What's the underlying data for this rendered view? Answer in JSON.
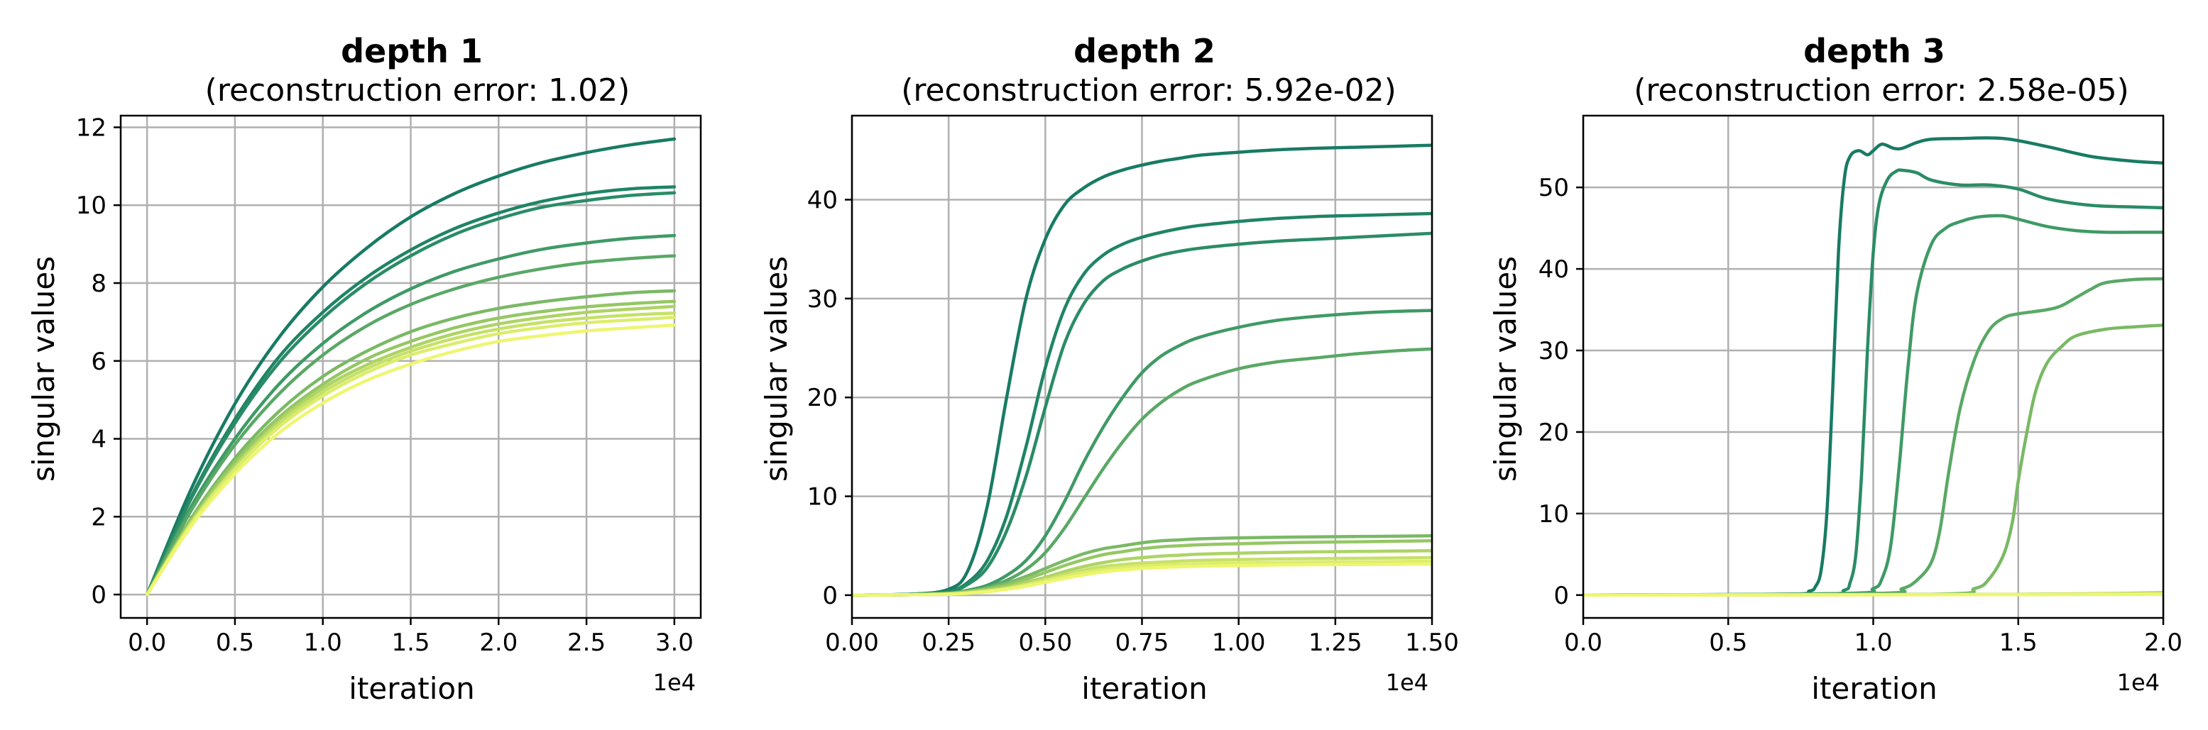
{
  "chart_data": [
    {
      "type": "line",
      "title": "depth 1",
      "subtitle": "(reconstruction error: 1.02)",
      "xlabel": "iteration",
      "ylabel": "singular values",
      "x_offset_label": "1e4",
      "x_scale": 10000,
      "xlim": [
        -0.15,
        3.15
      ],
      "ylim": [
        -0.6,
        12.3
      ],
      "xticks": [
        0.0,
        0.5,
        1.0,
        1.5,
        2.0,
        2.5,
        3.0
      ],
      "xtick_labels": [
        "0.0",
        "0.5",
        "1.0",
        "1.5",
        "2.0",
        "2.5",
        "3.0"
      ],
      "yticks": [
        0,
        2,
        4,
        6,
        8,
        10,
        12
      ],
      "ytick_labels": [
        "0",
        "2",
        "4",
        "6",
        "8",
        "10",
        "12"
      ],
      "grid": true,
      "x": [
        0.0,
        0.25,
        0.5,
        0.75,
        1.0,
        1.25,
        1.5,
        1.75,
        2.0,
        2.25,
        2.5,
        2.75,
        3.0
      ],
      "series": [
        {
          "color": "#187b63",
          "values": [
            0.0,
            2.7,
            4.9,
            6.6,
            7.9,
            8.9,
            9.7,
            10.3,
            10.75,
            11.1,
            11.35,
            11.55,
            11.7
          ]
        },
        {
          "color": "#1f8465",
          "values": [
            0.0,
            2.5,
            4.5,
            6.1,
            7.25,
            8.15,
            8.85,
            9.4,
            9.8,
            10.1,
            10.3,
            10.42,
            10.47
          ]
        },
        {
          "color": "#2a8c66",
          "values": [
            0.0,
            2.45,
            4.4,
            5.95,
            7.1,
            8.0,
            8.7,
            9.25,
            9.65,
            9.95,
            10.12,
            10.25,
            10.32
          ]
        },
        {
          "color": "#3f9a66",
          "values": [
            0.0,
            2.25,
            4.0,
            5.4,
            6.45,
            7.25,
            7.85,
            8.3,
            8.62,
            8.87,
            9.03,
            9.15,
            9.22
          ]
        },
        {
          "color": "#5aa866",
          "values": [
            0.0,
            2.15,
            3.85,
            5.15,
            6.15,
            6.9,
            7.45,
            7.85,
            8.15,
            8.37,
            8.53,
            8.63,
            8.7
          ]
        },
        {
          "color": "#7ab965",
          "values": [
            0.0,
            1.95,
            3.5,
            4.7,
            5.6,
            6.25,
            6.75,
            7.1,
            7.35,
            7.52,
            7.65,
            7.75,
            7.8
          ]
        },
        {
          "color": "#95c764",
          "values": [
            0.0,
            1.9,
            3.4,
            4.55,
            5.4,
            6.05,
            6.5,
            6.85,
            7.1,
            7.27,
            7.39,
            7.47,
            7.53
          ]
        },
        {
          "color": "#aed465",
          "values": [
            0.0,
            1.85,
            3.3,
            4.45,
            5.3,
            5.9,
            6.35,
            6.7,
            6.95,
            7.12,
            7.25,
            7.33,
            7.4
          ]
        },
        {
          "color": "#c6e168",
          "values": [
            0.0,
            1.82,
            3.25,
            4.38,
            5.2,
            5.8,
            6.25,
            6.58,
            6.82,
            6.99,
            7.1,
            7.18,
            7.23
          ]
        },
        {
          "color": "#dced6b",
          "values": [
            0.0,
            1.8,
            3.2,
            4.3,
            5.1,
            5.7,
            6.15,
            6.45,
            6.7,
            6.86,
            6.98,
            7.05,
            7.12
          ]
        },
        {
          "color": "#eef66f",
          "values": [
            0.0,
            1.75,
            3.1,
            4.15,
            4.92,
            5.5,
            5.92,
            6.25,
            6.5,
            6.65,
            6.77,
            6.85,
            6.92
          ]
        }
      ]
    },
    {
      "type": "line",
      "title": "depth 2",
      "subtitle": "(reconstruction error: 5.92e-02)",
      "xlabel": "iteration",
      "ylabel": "singular values",
      "x_offset_label": "1e4",
      "x_scale": 10000,
      "xlim": [
        0.0,
        1.5
      ],
      "ylim": [
        -2.3,
        48.5
      ],
      "xticks": [
        0.0,
        0.25,
        0.5,
        0.75,
        1.0,
        1.25,
        1.5
      ],
      "xtick_labels": [
        "0.00",
        "0.25",
        "0.50",
        "0.75",
        "1.00",
        "1.25",
        "1.50"
      ],
      "yticks": [
        0,
        10,
        20,
        30,
        40
      ],
      "ytick_labels": [
        "0",
        "10",
        "20",
        "30",
        "40"
      ],
      "grid": true,
      "x": [
        0.0,
        0.15,
        0.25,
        0.3,
        0.35,
        0.4,
        0.45,
        0.5,
        0.55,
        0.6,
        0.65,
        0.7,
        0.75,
        0.8,
        0.85,
        0.9,
        1.0,
        1.1,
        1.2,
        1.3,
        1.4,
        1.5
      ],
      "series": [
        {
          "color": "#187b63",
          "values": [
            0.0,
            0.1,
            0.6,
            2.5,
            9.0,
            20.0,
            30.0,
            36.0,
            39.5,
            41.2,
            42.3,
            43.0,
            43.5,
            43.9,
            44.2,
            44.5,
            44.8,
            45.05,
            45.2,
            45.3,
            45.4,
            45.5
          ]
        },
        {
          "color": "#1f8465",
          "values": [
            0.0,
            0.1,
            0.4,
            1.3,
            3.5,
            8.0,
            15.0,
            23.0,
            29.0,
            32.5,
            34.4,
            35.5,
            36.2,
            36.7,
            37.1,
            37.4,
            37.8,
            38.1,
            38.3,
            38.4,
            38.5,
            38.6
          ]
        },
        {
          "color": "#2a8c66",
          "values": [
            0.0,
            0.1,
            0.35,
            1.1,
            2.8,
            6.5,
            12.0,
            19.0,
            25.5,
            29.5,
            31.8,
            33.0,
            33.8,
            34.4,
            34.8,
            35.1,
            35.5,
            35.8,
            36.0,
            36.2,
            36.4,
            36.6
          ]
        },
        {
          "color": "#3f9a66",
          "values": [
            0.0,
            0.05,
            0.2,
            0.5,
            1.0,
            2.0,
            3.5,
            6.0,
            9.5,
            13.5,
            17.0,
            20.0,
            22.5,
            24.2,
            25.3,
            26.1,
            27.1,
            27.8,
            28.2,
            28.5,
            28.7,
            28.8
          ]
        },
        {
          "color": "#5aa866",
          "values": [
            0.0,
            0.05,
            0.2,
            0.4,
            0.8,
            1.5,
            2.6,
            4.3,
            6.8,
            9.8,
            12.8,
            15.5,
            17.8,
            19.5,
            20.8,
            21.7,
            22.9,
            23.6,
            24.0,
            24.4,
            24.7,
            24.9
          ]
        },
        {
          "color": "#7ab965",
          "values": [
            0.0,
            0.05,
            0.2,
            0.4,
            0.7,
            1.2,
            1.9,
            2.7,
            3.5,
            4.2,
            4.7,
            5.0,
            5.3,
            5.5,
            5.6,
            5.7,
            5.8,
            5.85,
            5.9,
            5.93,
            5.96,
            6.0
          ]
        },
        {
          "color": "#95c764",
          "values": [
            0.0,
            0.05,
            0.15,
            0.35,
            0.6,
            1.0,
            1.6,
            2.3,
            3.0,
            3.6,
            4.1,
            4.4,
            4.7,
            4.9,
            5.0,
            5.1,
            5.2,
            5.3,
            5.35,
            5.4,
            5.45,
            5.5
          ]
        },
        {
          "color": "#aed465",
          "values": [
            0.0,
            0.05,
            0.15,
            0.3,
            0.5,
            0.8,
            1.3,
            1.8,
            2.4,
            2.9,
            3.3,
            3.6,
            3.8,
            3.95,
            4.05,
            4.15,
            4.25,
            4.32,
            4.38,
            4.42,
            4.46,
            4.5
          ]
        },
        {
          "color": "#c6e168",
          "values": [
            0.0,
            0.05,
            0.1,
            0.25,
            0.45,
            0.7,
            1.1,
            1.6,
            2.1,
            2.55,
            2.9,
            3.1,
            3.25,
            3.35,
            3.45,
            3.52,
            3.6,
            3.66,
            3.7,
            3.73,
            3.76,
            3.8
          ]
        },
        {
          "color": "#dced6b",
          "values": [
            0.0,
            0.05,
            0.1,
            0.2,
            0.4,
            0.65,
            1.0,
            1.45,
            1.9,
            2.3,
            2.6,
            2.8,
            2.95,
            3.05,
            3.12,
            3.18,
            3.25,
            3.3,
            3.34,
            3.37,
            3.4,
            3.42
          ]
        },
        {
          "color": "#eef66f",
          "values": [
            0.0,
            0.05,
            0.1,
            0.2,
            0.35,
            0.6,
            0.9,
            1.3,
            1.7,
            2.05,
            2.35,
            2.55,
            2.7,
            2.8,
            2.87,
            2.93,
            3.0,
            3.05,
            3.08,
            3.1,
            3.12,
            3.15
          ]
        }
      ]
    },
    {
      "type": "line",
      "title": "depth 3",
      "subtitle": "(reconstruction error: 2.58e-05)",
      "xlabel": "iteration",
      "ylabel": "singular values",
      "x_offset_label": "1e4",
      "x_scale": 10000,
      "xlim": [
        0.0,
        2.0
      ],
      "ylim": [
        -2.8,
        58.8
      ],
      "xticks": [
        0.0,
        0.5,
        1.0,
        1.5,
        2.0
      ],
      "xtick_labels": [
        "0.0",
        "0.5",
        "1.0",
        "1.5",
        "2.0"
      ],
      "yticks": [
        0,
        10,
        20,
        30,
        40,
        50
      ],
      "ytick_labels": [
        "0",
        "10",
        "20",
        "30",
        "40",
        "50"
      ],
      "grid": true,
      "series": [
        {
          "color": "#187b63",
          "x": [
            0.0,
            0.7,
            0.78,
            0.8,
            0.82,
            0.84,
            0.86,
            0.88,
            0.9,
            0.92,
            0.95,
            0.98,
            1.0,
            1.03,
            1.07,
            1.1,
            1.15,
            1.2,
            1.3,
            1.45,
            1.6,
            1.75,
            1.9,
            2.0
          ],
          "values": [
            0.0,
            0.1,
            0.5,
            1.0,
            3.0,
            10.0,
            25.0,
            42.0,
            51.0,
            53.8,
            54.5,
            54.0,
            54.5,
            55.3,
            54.8,
            54.8,
            55.5,
            55.9,
            56.0,
            56.0,
            55.0,
            53.8,
            53.2,
            53.0
          ]
        },
        {
          "color": "#2a8c66",
          "x": [
            0.0,
            0.8,
            0.9,
            0.92,
            0.94,
            0.96,
            0.98,
            1.0,
            1.02,
            1.05,
            1.08,
            1.1,
            1.15,
            1.2,
            1.3,
            1.4,
            1.5,
            1.6,
            1.75,
            1.9,
            2.0
          ],
          "values": [
            0.0,
            0.1,
            0.6,
            1.5,
            5.0,
            15.0,
            30.0,
            42.0,
            48.0,
            51.0,
            52.0,
            52.1,
            51.8,
            50.9,
            50.3,
            50.3,
            49.8,
            48.6,
            47.8,
            47.6,
            47.5
          ]
        },
        {
          "color": "#3f9a66",
          "x": [
            0.0,
            0.9,
            1.0,
            1.03,
            1.06,
            1.09,
            1.12,
            1.15,
            1.2,
            1.25,
            1.3,
            1.35,
            1.4,
            1.45,
            1.5,
            1.6,
            1.7,
            1.8,
            1.9,
            2.0
          ],
          "values": [
            0.0,
            0.2,
            0.8,
            2.0,
            6.0,
            16.0,
            28.0,
            37.0,
            43.0,
            45.0,
            45.8,
            46.3,
            46.5,
            46.5,
            46.1,
            45.2,
            44.7,
            44.5,
            44.5,
            44.5
          ]
        },
        {
          "color": "#5aa866",
          "x": [
            0.0,
            1.0,
            1.1,
            1.15,
            1.2,
            1.23,
            1.26,
            1.3,
            1.35,
            1.4,
            1.45,
            1.5,
            1.6,
            1.65,
            1.7,
            1.75,
            1.8,
            1.9,
            2.0
          ],
          "values": [
            0.0,
            0.2,
            0.8,
            1.8,
            4.0,
            8.0,
            15.0,
            23.0,
            29.0,
            32.5,
            34.0,
            34.5,
            35.0,
            35.5,
            36.5,
            37.5,
            38.3,
            38.7,
            38.8
          ]
        },
        {
          "color": "#7ab965",
          "x": [
            0.0,
            1.2,
            1.35,
            1.4,
            1.45,
            1.48,
            1.5,
            1.53,
            1.56,
            1.6,
            1.65,
            1.7,
            1.8,
            1.9,
            2.0
          ],
          "values": [
            0.0,
            0.1,
            0.8,
            2.0,
            5.0,
            9.0,
            14.0,
            20.0,
            25.0,
            28.5,
            30.5,
            31.8,
            32.6,
            32.9,
            33.1
          ]
        },
        {
          "color": "#95c764",
          "x": [
            0.0,
            1.5,
            2.0
          ],
          "values": [
            0.0,
            0.1,
            0.3
          ]
        },
        {
          "color": "#aed465",
          "x": [
            0.0,
            1.5,
            2.0
          ],
          "values": [
            0.0,
            0.1,
            0.25
          ]
        },
        {
          "color": "#c6e168",
          "x": [
            0.0,
            1.5,
            2.0
          ],
          "values": [
            0.0,
            0.08,
            0.2
          ]
        },
        {
          "color": "#dced6b",
          "x": [
            0.0,
            1.5,
            2.0
          ],
          "values": [
            0.0,
            0.06,
            0.15
          ]
        },
        {
          "color": "#eef66f",
          "x": [
            0.0,
            1.5,
            2.0
          ],
          "values": [
            0.0,
            0.05,
            0.1
          ]
        }
      ]
    }
  ]
}
